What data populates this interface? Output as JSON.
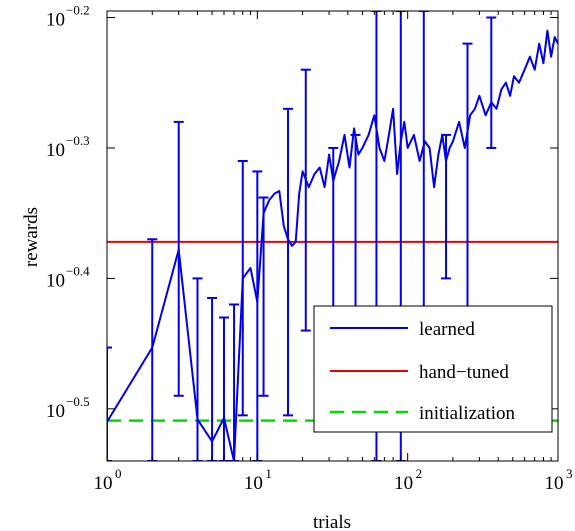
{
  "chart_data": {
    "type": "line",
    "xlabel": "trials",
    "ylabel": "rewards",
    "xscale": "log",
    "yscale": "log",
    "xlim": [
      1,
      1000
    ],
    "ylim_exponent": [
      -0.54,
      -0.195
    ],
    "x_ticks": [
      {
        "base": "10",
        "exp": "0",
        "value": 1
      },
      {
        "base": "10",
        "exp": "1",
        "value": 10
      },
      {
        "base": "10",
        "exp": "2",
        "value": 100
      },
      {
        "base": "10",
        "exp": "3",
        "value": 1000
      }
    ],
    "y_ticks": [
      {
        "base": "10",
        "exp": "−0.2",
        "value": -0.2
      },
      {
        "base": "10",
        "exp": "−0.3",
        "value": -0.3
      },
      {
        "base": "10",
        "exp": "−0.4",
        "value": -0.4
      },
      {
        "base": "10",
        "exp": "−0.5",
        "value": -0.5
      }
    ],
    "grid": false,
    "legend_position": "bottom-right",
    "series": [
      {
        "name": "learned",
        "color": "#0000ee",
        "style": "solid",
        "x": [
          1,
          2,
          3,
          4,
          5,
          6,
          7,
          8,
          9,
          10,
          11,
          12,
          13,
          14,
          15,
          16,
          17,
          18,
          19,
          20,
          22,
          24,
          26,
          28,
          30,
          32,
          35,
          38,
          41,
          44,
          47,
          50,
          55,
          60,
          65,
          70,
          75,
          80,
          85,
          90,
          95,
          100,
          110,
          120,
          130,
          140,
          150,
          160,
          170,
          180,
          190,
          200,
          220,
          240,
          260,
          280,
          300,
          330,
          360,
          390,
          420,
          450,
          480,
          510,
          550,
          600,
          650,
          700,
          750,
          800,
          850,
          900,
          950,
          1000
        ],
        "y_exponent": [
          -0.51,
          -0.453,
          -0.378,
          -0.508,
          -0.525,
          -0.507,
          -0.54,
          -0.4,
          -0.392,
          -0.418,
          -0.35,
          -0.34,
          -0.335,
          -0.333,
          -0.36,
          -0.37,
          -0.375,
          -0.372,
          -0.335,
          -0.318,
          -0.33,
          -0.32,
          -0.315,
          -0.33,
          -0.305,
          -0.325,
          -0.31,
          -0.29,
          -0.315,
          -0.285,
          -0.305,
          -0.3,
          -0.29,
          -0.275,
          -0.3,
          -0.31,
          -0.29,
          -0.27,
          -0.32,
          -0.295,
          -0.28,
          -0.3,
          -0.29,
          -0.31,
          -0.295,
          -0.3,
          -0.33,
          -0.305,
          -0.29,
          -0.31,
          -0.3,
          -0.295,
          -0.28,
          -0.3,
          -0.275,
          -0.27,
          -0.26,
          -0.275,
          -0.265,
          -0.27,
          -0.255,
          -0.25,
          -0.26,
          -0.245,
          -0.25,
          -0.24,
          -0.23,
          -0.24,
          -0.22,
          -0.235,
          -0.21,
          -0.23,
          -0.215,
          -0.22
        ],
        "errorbars": [
          {
            "x": 1,
            "low": -0.54,
            "high": -0.453
          },
          {
            "x": 2,
            "low": -0.54,
            "high": -0.37
          },
          {
            "x": 3,
            "low": -0.49,
            "high": -0.28
          },
          {
            "x": 4,
            "low": -0.54,
            "high": -0.4
          },
          {
            "x": 5,
            "low": -0.54,
            "high": -0.415
          },
          {
            "x": 6,
            "low": -0.54,
            "high": -0.43
          },
          {
            "x": 7,
            "low": -0.54,
            "high": -0.42
          },
          {
            "x": 8,
            "low": -0.505,
            "high": -0.31
          },
          {
            "x": 10,
            "low": -0.54,
            "high": -0.318
          },
          {
            "x": 11,
            "low": -0.49,
            "high": -0.338
          },
          {
            "x": 16,
            "low": -0.505,
            "high": -0.27
          },
          {
            "x": 21,
            "low": -0.44,
            "high": -0.24
          },
          {
            "x": 32,
            "low": -0.44,
            "high": -0.3
          },
          {
            "x": 45,
            "low": -0.5,
            "high": -0.29
          },
          {
            "x": 62,
            "low": -0.54,
            "high": -0.195
          },
          {
            "x": 90,
            "low": -0.54,
            "high": -0.195
          },
          {
            "x": 128,
            "low": -0.45,
            "high": -0.195
          },
          {
            "x": 180,
            "low": -0.4,
            "high": -0.29
          },
          {
            "x": 250,
            "low": -0.46,
            "high": -0.22
          },
          {
            "x": 360,
            "low": -0.3,
            "high": -0.2
          }
        ]
      },
      {
        "name": "hand−tuned",
        "color": "#ee0000",
        "style": "solid",
        "y_exponent_constant": -0.372
      },
      {
        "name": "initialization",
        "color": "#00dd00",
        "style": "dashed",
        "y_exponent_constant": -0.509
      }
    ]
  }
}
